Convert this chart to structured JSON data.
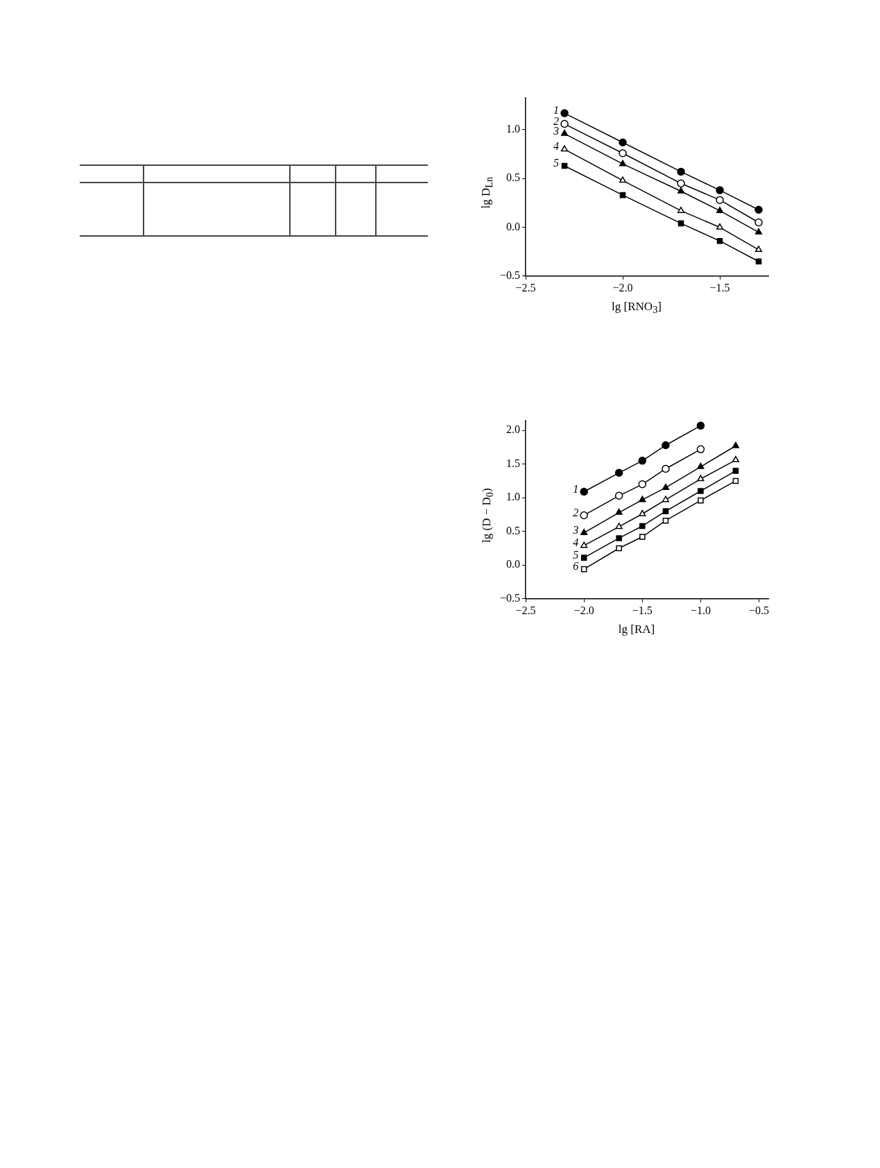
{
  "chart_data": [
    {
      "type": "line",
      "xlabel": "lg [RNO$_{3}$]",
      "ylabel": "lg D$_{Ln}$",
      "xlim": [
        -2.5,
        -1.25
      ],
      "ylim": [
        -0.5,
        1.33
      ],
      "xticks": [
        {
          "value": -2.5,
          "label": "−2.5"
        },
        {
          "value": -2.0,
          "label": "−2.0"
        },
        {
          "value": -1.5,
          "label": "−1.5"
        }
      ],
      "yticks": [
        {
          "value": -0.5,
          "label": "−0.5"
        },
        {
          "value": 0,
          "label": "0.0"
        },
        {
          "value": 0.5,
          "label": "0.5"
        },
        {
          "value": 1.0,
          "label": "1.0"
        }
      ],
      "grid": false,
      "legend": false,
      "line_style": "solid",
      "series": [
        {
          "name": "1",
          "color": "#000000",
          "marker": "circle",
          "x": [
            -2.3,
            -2.0,
            -1.7,
            -1.5,
            -1.3
          ],
          "values": [
            1.17,
            0.87,
            0.57,
            0.38,
            0.18
          ]
        },
        {
          "name": "2",
          "color": "#000000",
          "colors": [
            "#ffffff",
            "#ffffff",
            "#ffffff",
            "#ffffff",
            "#ffffff"
          ],
          "marker": "circle",
          "x": [
            -2.3,
            -2.0,
            -1.7,
            -1.5,
            -1.3
          ],
          "values": [
            1.06,
            0.76,
            0.45,
            0.28,
            0.05
          ]
        },
        {
          "name": "3",
          "color": "#000000",
          "marker": "triangle",
          "x": [
            -2.3,
            -2.0,
            -1.7,
            -1.5,
            -1.3
          ],
          "values": [
            0.96,
            0.65,
            0.37,
            0.17,
            -0.05
          ]
        },
        {
          "name": "4",
          "color": "#000000",
          "colors": [
            "#ffffff",
            "#ffffff",
            "#ffffff",
            "#ffffff",
            "#ffffff"
          ],
          "marker": "triangle",
          "x": [
            -2.3,
            -2.0,
            -1.7,
            -1.5,
            -1.3
          ],
          "values": [
            0.8,
            0.48,
            0.17,
            0.0,
            -0.23
          ]
        },
        {
          "name": "5",
          "color": "#000000",
          "marker": "square",
          "x": [
            -2.3,
            -2.0,
            -1.7,
            -1.5,
            -1.3
          ],
          "values": [
            0.63,
            0.33,
            0.04,
            -0.14,
            -0.35
          ]
        }
      ]
    },
    {
      "type": "line",
      "xlabel": "lg [RA]",
      "ylabel": "lg (D − D$_{0}$)",
      "xlim": [
        -2.5,
        -0.42
      ],
      "ylim": [
        -0.5,
        2.15
      ],
      "xticks": [
        {
          "value": -2.5,
          "label": "−2.5"
        },
        {
          "value": -2.0,
          "label": "−2.0"
        },
        {
          "value": -1.5,
          "label": "−1.5"
        },
        {
          "value": -1.0,
          "label": "−1.0"
        },
        {
          "value": -0.5,
          "label": "−0.5"
        }
      ],
      "yticks": [
        {
          "value": -0.5,
          "label": "−0.5"
        },
        {
          "value": 0,
          "label": "0.0"
        },
        {
          "value": 0.5,
          "label": "0.5"
        },
        {
          "value": 1.0,
          "label": "1.0"
        },
        {
          "value": 1.5,
          "label": "1.5"
        },
        {
          "value": 2.0,
          "label": "2.0"
        }
      ],
      "grid": false,
      "legend": false,
      "line_style": "solid",
      "series": [
        {
          "name": "1",
          "color": "#000000",
          "marker": "circle",
          "x": [
            -2.0,
            -1.7,
            -1.5,
            -1.3,
            -1.0
          ],
          "values": [
            1.09,
            1.37,
            1.55,
            1.78,
            2.07
          ]
        },
        {
          "name": "2",
          "color": "#000000",
          "colors": [
            "#ffffff",
            "#ffffff",
            "#ffffff",
            "#ffffff",
            "#ffffff"
          ],
          "marker": "circle",
          "x": [
            -2.0,
            -1.7,
            -1.5,
            -1.3,
            -1.0
          ],
          "values": [
            0.74,
            1.03,
            1.2,
            1.43,
            1.72
          ]
        },
        {
          "name": "3",
          "color": "#000000",
          "marker": "triangle",
          "x": [
            -2.0,
            -1.7,
            -1.5,
            -1.3,
            -1.0,
            -0.7
          ],
          "values": [
            0.48,
            0.78,
            0.97,
            1.15,
            1.46,
            1.77
          ]
        },
        {
          "name": "4",
          "color": "#000000",
          "colors": [
            "#ffffff",
            "#ffffff",
            "#ffffff",
            "#ffffff",
            "#ffffff",
            "#ffffff"
          ],
          "marker": "triangle",
          "x": [
            -2.0,
            -1.7,
            -1.5,
            -1.3,
            -1.0,
            -0.7
          ],
          "values": [
            0.29,
            0.57,
            0.76,
            0.97,
            1.28,
            1.56
          ]
        },
        {
          "name": "5",
          "color": "#000000",
          "marker": "square",
          "x": [
            -2.0,
            -1.7,
            -1.5,
            -1.3,
            -1.0,
            -0.7
          ],
          "values": [
            0.11,
            0.4,
            0.58,
            0.8,
            1.1,
            1.4
          ]
        },
        {
          "name": "6",
          "color": "#000000",
          "colors": [
            "#ffffff",
            "#ffffff",
            "#ffffff",
            "#ffffff",
            "#ffffff",
            "#ffffff"
          ],
          "marker": "square",
          "x": [
            -2.0,
            -1.7,
            -1.5,
            -1.3,
            -1.0,
            -0.7
          ],
          "values": [
            -0.06,
            0.25,
            0.42,
            0.66,
            0.96,
            1.25
          ]
        }
      ]
    }
  ]
}
